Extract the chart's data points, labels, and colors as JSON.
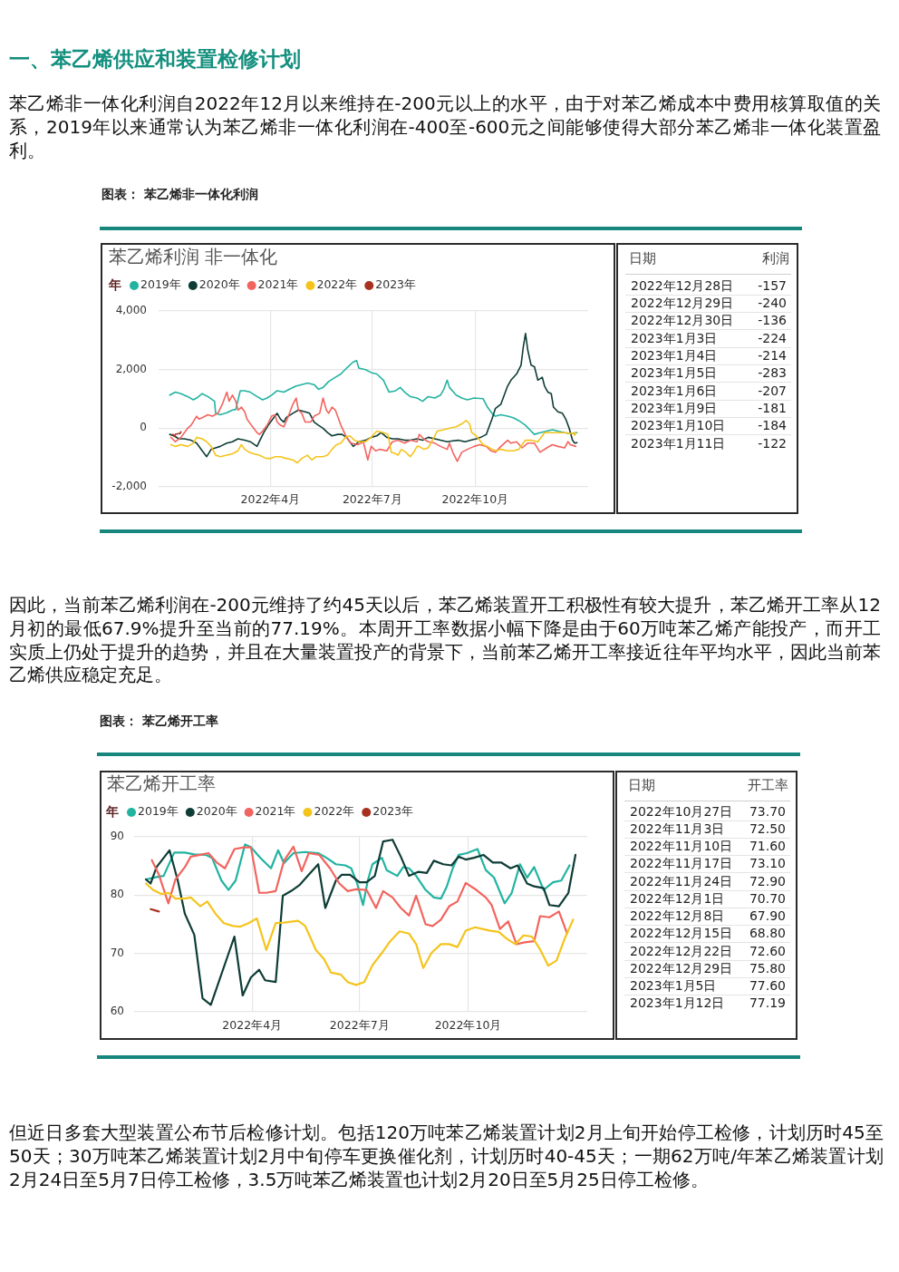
{
  "chart_data": [
    {
      "type": "line",
      "title": "苯乙烯利润 非一体化",
      "legend_title": "年",
      "legend": "top left",
      "grid": true,
      "marker": "none",
      "annotations": [
        "一、苯乙烯供应和装置检修计划",
        "苯乙烯非一体化利润自2022年12月以来维持在-200元以上的水平，由于对苯乙烯成本中费用核算取值的关系，2019年以来通常认为苯乙烯非一体化利润在-400至-600元之间能够使得大部分苯乙烯非一体化装置盈利。",
        "图表： 苯乙烯非一体化利润"
      ],
      "xlim": [
        "2021-12-22",
        "2023-01-10"
      ],
      "xticks": [
        {
          "value": "2022-04",
          "label": "2022年4月"
        },
        {
          "value": "2022-07",
          "label": "2022年7月"
        },
        {
          "value": "2022-10",
          "label": "2022年10月"
        }
      ],
      "ylim": [
        -2000,
        4000
      ],
      "yticks": [
        {
          "value": -2000,
          "label": "-2,000"
        },
        0,
        {
          "value": 2000,
          "label": "2,000"
        },
        {
          "value": 4000,
          "label": "4,000"
        }
      ],
      "series": [
        {
          "name": "2019年",
          "color": "#22b3a1",
          "x": [
            "2022-01-01",
            "2022-01-06",
            "2022-01-11",
            "2022-01-17",
            "2022-01-22",
            "2022-01-25",
            "2022-01-30",
            "2022-02-04",
            "2022-02-10",
            "2022-02-11",
            "2022-02-15",
            "2022-02-21",
            "2022-02-26",
            "2022-03-01",
            "2022-03-05",
            "2022-03-09",
            "2022-03-14",
            "2022-03-20",
            "2022-03-25",
            "2022-03-29",
            "2022-04-02",
            "2022-04-07",
            "2022-04-13",
            "2022-04-18",
            "2022-04-24",
            "2022-04-29",
            "2022-05-04",
            "2022-05-10",
            "2022-05-14",
            "2022-05-18",
            "2022-05-23",
            "2022-05-29",
            "2022-06-03",
            "2022-06-08",
            "2022-06-14",
            "2022-06-17",
            "2022-06-19",
            "2022-06-25",
            "2022-06-30",
            "2022-07-05",
            "2022-07-11",
            "2022-07-16",
            "2022-07-22",
            "2022-07-26",
            "2022-07-30",
            "2022-08-04",
            "2022-08-10",
            "2022-08-15",
            "2022-08-20",
            "2022-08-26",
            "2022-08-31",
            "2022-09-03",
            "2022-09-06",
            "2022-09-08",
            "2022-09-14",
            "2022-09-19",
            "2022-09-24",
            "2022-09-30",
            "2022-10-08",
            "2022-10-12",
            "2022-10-16",
            "2022-10-19",
            "2022-10-24",
            "2022-10-30",
            "2022-11-04",
            "2022-11-09",
            "2022-11-15",
            "2022-11-20",
            "2022-11-23",
            "2022-11-28",
            "2022-12-04",
            "2022-12-09",
            "2022-12-14",
            "2022-12-20",
            "2022-12-25",
            "2022-12-31"
          ],
          "values": [
            1130,
            1230,
            1180,
            1080,
            970,
            1030,
            1180,
            1080,
            920,
            510,
            460,
            530,
            620,
            640,
            1280,
            1280,
            1230,
            1080,
            970,
            1030,
            1130,
            1280,
            1230,
            1330,
            1440,
            1490,
            1540,
            1490,
            1330,
            1390,
            1590,
            1740,
            1850,
            2050,
            2260,
            2310,
            2050,
            2000,
            1900,
            1850,
            1640,
            1230,
            1280,
            1390,
            1230,
            1080,
            1030,
            920,
            1080,
            1030,
            1130,
            1330,
            1640,
            1390,
            1130,
            1030,
            970,
            1030,
            1010,
            720,
            510,
            410,
            460,
            410,
            360,
            260,
            100,
            -100,
            -210,
            -150,
            -100,
            -50,
            -100,
            -150,
            -180,
            -150
          ]
        },
        {
          "name": "2020年",
          "color": "#0e3d36",
          "x": [
            "2022-01-01",
            "2022-01-05",
            "2022-01-09",
            "2022-01-14",
            "2022-01-20",
            "2022-01-25",
            "2022-01-30",
            "2022-02-03",
            "2022-02-07",
            "2022-02-11",
            "2022-02-15",
            "2022-02-21",
            "2022-02-26",
            "2022-03-03",
            "2022-03-09",
            "2022-03-14",
            "2022-03-20",
            "2022-03-22",
            "2022-03-26",
            "2022-03-30",
            "2022-04-03",
            "2022-04-07",
            "2022-04-10",
            "2022-04-13",
            "2022-04-15",
            "2022-04-21",
            "2022-04-26",
            "2022-05-02",
            "2022-05-06",
            "2022-05-10",
            "2022-05-14",
            "2022-05-18",
            "2022-05-22",
            "2022-05-26",
            "2022-05-31",
            "2022-06-04",
            "2022-06-08",
            "2022-06-14",
            "2022-06-19",
            "2022-06-25",
            "2022-06-30",
            "2022-07-05",
            "2022-07-09",
            "2022-07-14",
            "2022-07-19",
            "2022-07-24",
            "2022-07-30",
            "2022-08-04",
            "2022-08-10",
            "2022-08-15",
            "2022-08-20",
            "2022-08-26",
            "2022-08-31",
            "2022-09-06",
            "2022-09-11",
            "2022-09-16",
            "2022-09-22",
            "2022-09-27",
            "2022-10-02",
            "2022-10-06",
            "2022-10-11",
            "2022-10-13",
            "2022-10-16",
            "2022-10-19",
            "2022-10-24",
            "2022-10-27",
            "2022-10-30",
            "2022-11-02",
            "2022-11-07",
            "2022-11-11",
            "2022-11-13",
            "2022-11-15",
            "2022-11-17",
            "2022-11-20",
            "2022-11-23",
            "2022-11-26",
            "2022-11-30",
            "2022-12-02",
            "2022-12-05",
            "2022-12-08",
            "2022-12-10",
            "2022-12-14",
            "2022-12-18",
            "2022-12-21",
            "2022-12-24",
            "2022-12-27",
            "2022-12-29",
            "2022-12-31"
          ],
          "values": [
            -210,
            -260,
            -360,
            -360,
            -410,
            -510,
            -770,
            -970,
            -720,
            -670,
            -620,
            -510,
            -460,
            -360,
            -410,
            -460,
            -620,
            -460,
            -150,
            100,
            310,
            510,
            310,
            210,
            360,
            510,
            620,
            560,
            510,
            210,
            100,
            0,
            -150,
            -260,
            -210,
            -210,
            -310,
            -620,
            -460,
            -410,
            -310,
            -260,
            -150,
            -310,
            -360,
            -360,
            -410,
            -410,
            -360,
            -410,
            -310,
            -360,
            -410,
            -460,
            -430,
            -410,
            -460,
            -410,
            -360,
            -310,
            -210,
            0,
            310,
            670,
            820,
            1130,
            1440,
            1640,
            1850,
            2150,
            2770,
            3230,
            2670,
            2150,
            2100,
            1640,
            1740,
            1440,
            1230,
            1180,
            720,
            560,
            510,
            310,
            0,
            -410,
            -510,
            -490
          ]
        },
        {
          "name": "2021年",
          "color": "#f2645f",
          "x": [
            "2022-01-02",
            "2022-01-06",
            "2022-01-11",
            "2022-01-17",
            "2022-01-20",
            "2022-01-25",
            "2022-01-27",
            "2022-01-30",
            "2022-02-04",
            "2022-02-08",
            "2022-02-13",
            "2022-02-17",
            "2022-02-21",
            "2022-02-23",
            "2022-02-26",
            "2022-03-01",
            "2022-03-03",
            "2022-03-06",
            "2022-03-09",
            "2022-03-11",
            "2022-03-15",
            "2022-03-20",
            "2022-03-22",
            "2022-03-25",
            "2022-03-29",
            "2022-04-02",
            "2022-04-05",
            "2022-04-07",
            "2022-04-10",
            "2022-04-13",
            "2022-04-17",
            "2022-04-21",
            "2022-04-24",
            "2022-04-26",
            "2022-04-29",
            "2022-05-02",
            "2022-05-07",
            "2022-05-10",
            "2022-05-15",
            "2022-05-18",
            "2022-05-21",
            "2022-05-23",
            "2022-05-26",
            "2022-05-29",
            "2022-05-31",
            "2022-06-03",
            "2022-06-06",
            "2022-06-08",
            "2022-06-12",
            "2022-06-18",
            "2022-06-23",
            "2022-06-27",
            "2022-06-30",
            "2022-07-04",
            "2022-07-08",
            "2022-07-14",
            "2022-07-19",
            "2022-07-24",
            "2022-07-30",
            "2022-08-04",
            "2022-08-10",
            "2022-08-12",
            "2022-08-16",
            "2022-08-20",
            "2022-08-26",
            "2022-08-31",
            "2022-09-06",
            "2022-09-08",
            "2022-09-11",
            "2022-09-15",
            "2022-09-19",
            "2022-09-24",
            "2022-09-30",
            "2022-10-05",
            "2022-10-11",
            "2022-10-15",
            "2022-10-19",
            "2022-10-24",
            "2022-10-30",
            "2022-11-02",
            "2022-11-07",
            "2022-11-12",
            "2022-11-17",
            "2022-11-23",
            "2022-11-28",
            "2022-12-04",
            "2022-12-09",
            "2022-12-14",
            "2022-12-20",
            "2022-12-23",
            "2022-12-25",
            "2022-12-30"
          ],
          "values": [
            -310,
            -460,
            -310,
            0,
            100,
            410,
            310,
            360,
            460,
            410,
            510,
            820,
            1230,
            920,
            1130,
            920,
            620,
            720,
            560,
            310,
            100,
            -150,
            -210,
            -100,
            100,
            410,
            460,
            210,
            100,
            50,
            410,
            820,
            1030,
            620,
            510,
            210,
            210,
            410,
            510,
            1030,
            620,
            510,
            720,
            620,
            410,
            100,
            -150,
            -310,
            -510,
            -560,
            -460,
            -1080,
            -620,
            -770,
            -720,
            -770,
            -460,
            -410,
            -510,
            -410,
            -460,
            -210,
            -360,
            -460,
            -510,
            -620,
            -720,
            -510,
            -820,
            -1130,
            -820,
            -720,
            -620,
            -560,
            -620,
            -770,
            -820,
            -620,
            -410,
            -510,
            -460,
            -670,
            -510,
            -510,
            -820,
            -670,
            -560,
            -620,
            -670,
            -460,
            -560,
            -620
          ]
        },
        {
          "name": "2022年",
          "color": "#f4c41d",
          "x": [
            "2022-01-02",
            "2022-01-06",
            "2022-01-11",
            "2022-01-17",
            "2022-01-22",
            "2022-01-25",
            "2022-01-30",
            "2022-02-03",
            "2022-02-07",
            "2022-02-11",
            "2022-02-15",
            "2022-02-21",
            "2022-02-26",
            "2022-03-03",
            "2022-03-06",
            "2022-03-09",
            "2022-03-13",
            "2022-03-17",
            "2022-03-22",
            "2022-03-28",
            "2022-04-01",
            "2022-04-05",
            "2022-04-10",
            "2022-04-15",
            "2022-04-21",
            "2022-04-25",
            "2022-04-29",
            "2022-05-04",
            "2022-05-08",
            "2022-05-12",
            "2022-05-18",
            "2022-05-22",
            "2022-05-26",
            "2022-05-30",
            "2022-06-03",
            "2022-06-07",
            "2022-06-11",
            "2022-06-15",
            "2022-06-19",
            "2022-06-25",
            "2022-06-30",
            "2022-07-05",
            "2022-07-11",
            "2022-07-15",
            "2022-07-18",
            "2022-07-22",
            "2022-07-24",
            "2022-07-27",
            "2022-07-31",
            "2022-08-04",
            "2022-08-07",
            "2022-08-10",
            "2022-08-12",
            "2022-08-16",
            "2022-08-20",
            "2022-08-23",
            "2022-08-26",
            "2022-08-28",
            "2022-09-03",
            "2022-09-08",
            "2022-09-14",
            "2022-09-19",
            "2022-09-23",
            "2022-09-26",
            "2022-09-28",
            "2022-10-02",
            "2022-10-05",
            "2022-10-08",
            "2022-10-12",
            "2022-10-16",
            "2022-10-20",
            "2022-10-24",
            "2022-10-30",
            "2022-11-04",
            "2022-11-09",
            "2022-11-12",
            "2022-11-15",
            "2022-11-20",
            "2022-11-26",
            "2022-11-30",
            "2022-12-02",
            "2022-12-09",
            "2022-12-14",
            "2022-12-20",
            "2022-12-25",
            "2022-12-28",
            "2022-12-29",
            "2022-12-30"
          ],
          "values": [
            -560,
            -620,
            -560,
            -620,
            -510,
            -310,
            -360,
            -460,
            -620,
            -920,
            -970,
            -920,
            -870,
            -770,
            -560,
            -720,
            -820,
            -870,
            -920,
            -1030,
            -1030,
            -970,
            -970,
            -1030,
            -1080,
            -1180,
            -1030,
            -920,
            -1080,
            -970,
            -970,
            -920,
            -720,
            -560,
            -510,
            -310,
            -260,
            -410,
            -460,
            -460,
            -310,
            -100,
            -150,
            -210,
            -820,
            -870,
            -920,
            -720,
            -820,
            -970,
            -820,
            -620,
            -620,
            -720,
            -670,
            -460,
            -260,
            -100,
            -50,
            0,
            50,
            150,
            260,
            150,
            -150,
            -260,
            -410,
            -560,
            -620,
            -720,
            -770,
            -720,
            -770,
            -770,
            -720,
            -560,
            -410,
            -410,
            -460,
            -260,
            -150,
            -150,
            -150,
            -150,
            -180,
            -157,
            -240,
            -136
          ]
        },
        {
          "name": "2023年",
          "color": "#a8301f",
          "x": [
            "2022-01-03",
            "2022-01-04",
            "2022-01-05",
            "2022-01-06",
            "2022-01-09",
            "2022-01-10",
            "2022-01-11"
          ],
          "values": [
            -224,
            -214,
            -283,
            -207,
            -181,
            -184,
            -122
          ]
        }
      ]
    },
    {
      "type": "other",
      "xlabel": "日期",
      "ylabel": "利润",
      "data_labels": true,
      "categories": [
        "2022年12月28日",
        "2022年12月29日",
        "2022年12月30日",
        "2023年1月3日",
        "2023年1月4日",
        "2023年1月5日",
        "2023年1月6日",
        "2023年1月9日",
        "2023年1月10日",
        "2023年1月11日"
      ],
      "values": [
        -157,
        -240,
        -136,
        -224,
        -214,
        -283,
        -207,
        -181,
        -184,
        -122
      ]
    },
    {
      "type": "line",
      "title": "苯乙烯开工率",
      "legend_title": "年",
      "legend": "top left",
      "grid": true,
      "marker": "none",
      "annotations": [
        "因此，当前苯乙烯利润在-200元维持了约45天以后，苯乙烯装置开工积极性有较大提升，苯乙烯开工率从12月初的最低67.9%提升至当前的77.19%。本周开工率数据小幅下降是由于60万吨苯乙烯产能投产，而开工实质上仍处于提升的趋势，并且在大量装置投产的背景下，当前苯乙烯开工率接近往年平均水平，因此当前苯乙烯供应稳定充足。",
        "图表： 苯乙烯开工率",
        "但近日多套大型装置公布节后检修计划。包括120万吨苯乙烯装置计划2月上旬开始停工检修，计划历时45至50天；30万吨苯乙烯装置计划2月中旬停车更换催化剂，计划历时40-45天；一期62万吨/年苯乙烯装置计划2月24日至5月7日停工检修，3.5万吨苯乙烯装置也计划2月20日至5月25日停工检修。"
      ],
      "xlim": [
        "2021-12-22",
        "2023-01-10"
      ],
      "xticks": [
        {
          "value": "2022-04",
          "label": "2022年4月"
        },
        {
          "value": "2022-07",
          "label": "2022年7月"
        },
        {
          "value": "2022-10",
          "label": "2022年10月"
        }
      ],
      "ylim": [
        60,
        90
      ],
      "yticks": [
        60,
        70,
        80,
        90
      ],
      "series": [
        {
          "name": "2019年",
          "color": "#22b3a1",
          "x": [
            "2022-01-01",
            "2022-01-10",
            "2022-01-16",
            "2022-01-25",
            "2022-02-03",
            "2022-02-11",
            "2022-02-21",
            "2022-02-26",
            "2022-03-06",
            "2022-03-12",
            "2022-03-18",
            "2022-03-26",
            "2022-03-31",
            "2022-04-08",
            "2022-04-17",
            "2022-04-23",
            "2022-04-28",
            "2022-05-06",
            "2022-05-16",
            "2022-05-27",
            "2022-06-03",
            "2022-06-11",
            "2022-06-19",
            "2022-06-24",
            "2022-06-29",
            "2022-07-04",
            "2022-07-08",
            "2022-07-12",
            "2022-07-20",
            "2022-07-24",
            "2022-08-02",
            "2022-08-07",
            "2022-08-12",
            "2022-08-18",
            "2022-08-26",
            "2022-09-02",
            "2022-09-08",
            "2022-09-13",
            "2022-09-18",
            "2022-09-23",
            "2022-09-30",
            "2022-10-09",
            "2022-10-16",
            "2022-10-23",
            "2022-11-01",
            "2022-11-07",
            "2022-11-14",
            "2022-11-20",
            "2022-11-26",
            "2022-12-04",
            "2022-12-12",
            "2022-12-19",
            "2022-12-26"
          ],
          "values": [
            82.7,
            83.1,
            83.3,
            87.3,
            87.3,
            87.0,
            86.9,
            86.4,
            82.5,
            80.9,
            82.5,
            88.7,
            88.2,
            86.4,
            84.6,
            87.7,
            85.5,
            87.2,
            87.4,
            87.2,
            86.4,
            85.3,
            85.1,
            84.6,
            82.0,
            78.3,
            82.5,
            85.3,
            86.4,
            84.3,
            83.3,
            84.8,
            84.6,
            83.3,
            80.9,
            79.6,
            79.4,
            81.5,
            84.6,
            86.9,
            87.2,
            87.9,
            84.3,
            83.0,
            78.6,
            80.4,
            85.3,
            83.0,
            84.8,
            80.9,
            82.2,
            82.5,
            85.1
          ]
        },
        {
          "name": "2020年",
          "color": "#0e3d36",
          "x": [
            "2022-01-01",
            "2022-01-05",
            "2022-01-10",
            "2022-01-21",
            "2022-01-28",
            "2022-02-03",
            "2022-02-11",
            "2022-02-18",
            "2022-02-25",
            "2022-03-17",
            "2022-03-24",
            "2022-03-31",
            "2022-04-07",
            "2022-04-12",
            "2022-04-21",
            "2022-04-27",
            "2022-05-04",
            "2022-05-11",
            "2022-05-19",
            "2022-05-27",
            "2022-06-02",
            "2022-06-11",
            "2022-06-16",
            "2022-06-23",
            "2022-07-01",
            "2022-07-07",
            "2022-07-14",
            "2022-07-21",
            "2022-07-29",
            "2022-08-05",
            "2022-08-12",
            "2022-08-20",
            "2022-08-27",
            "2022-09-02",
            "2022-09-10",
            "2022-09-17",
            "2022-09-23",
            "2022-09-29",
            "2022-10-06",
            "2022-10-14",
            "2022-10-22",
            "2022-10-29",
            "2022-11-06",
            "2022-11-12",
            "2022-11-20",
            "2022-11-26",
            "2022-12-04",
            "2022-12-09",
            "2022-12-17",
            "2022-12-25",
            "2022-12-31"
          ],
          "values": [
            82.7,
            82.0,
            84.8,
            87.7,
            82.5,
            76.8,
            73.2,
            62.3,
            61.2,
            72.9,
            62.8,
            65.9,
            67.2,
            65.4,
            65.1,
            79.9,
            80.7,
            81.7,
            83.5,
            85.3,
            77.8,
            82.5,
            83.5,
            83.5,
            82.2,
            82.2,
            83.3,
            89.2,
            89.5,
            86.6,
            83.3,
            84.0,
            83.8,
            85.9,
            85.3,
            85.1,
            86.6,
            86.1,
            86.4,
            86.9,
            85.6,
            85.6,
            84.6,
            85.1,
            82.0,
            81.5,
            81.2,
            78.3,
            78.1,
            80.4,
            86.9
          ]
        },
        {
          "name": "2021年",
          "color": "#f2645f",
          "x": [
            "2022-01-06",
            "2022-01-12",
            "2022-01-20",
            "2022-01-26",
            "2022-02-03",
            "2022-02-08",
            "2022-02-16",
            "2022-02-23",
            "2022-03-02",
            "2022-03-09",
            "2022-03-17",
            "2022-03-25",
            "2022-03-31",
            "2022-04-07",
            "2022-04-13",
            "2022-04-21",
            "2022-04-28",
            "2022-05-06",
            "2022-05-13",
            "2022-05-19",
            "2022-05-28",
            "2022-06-06",
            "2022-06-14",
            "2022-06-21",
            "2022-06-28",
            "2022-07-07",
            "2022-07-15",
            "2022-07-21",
            "2022-07-29",
            "2022-08-05",
            "2022-08-12",
            "2022-08-18",
            "2022-08-26",
            "2022-09-01",
            "2022-09-08",
            "2022-09-15",
            "2022-09-22",
            "2022-09-29",
            "2022-10-08",
            "2022-10-16",
            "2022-10-21",
            "2022-10-28",
            "2022-11-04",
            "2022-11-11",
            "2022-11-18",
            "2022-11-26",
            "2022-12-01",
            "2022-12-09",
            "2022-12-17",
            "2022-12-24"
          ],
          "values": [
            86.0,
            83.5,
            78.6,
            82.7,
            84.8,
            86.6,
            86.9,
            87.2,
            85.6,
            84.6,
            87.9,
            88.2,
            88.2,
            80.4,
            80.4,
            80.7,
            85.9,
            88.3,
            84.1,
            87.2,
            86.9,
            84.6,
            82.0,
            80.7,
            81.0,
            80.9,
            77.8,
            80.7,
            79.6,
            77.8,
            76.5,
            79.9,
            75.0,
            74.7,
            75.8,
            78.1,
            78.9,
            82.1,
            80.9,
            79.6,
            78.3,
            74.2,
            75.5,
            71.6,
            71.9,
            72.1,
            76.4,
            76.2,
            77.2,
            73.4
          ]
        },
        {
          "name": "2022年",
          "color": "#f4c41d",
          "x": [
            "2022-01-01",
            "2022-01-07",
            "2022-01-14",
            "2022-01-20",
            "2022-01-26",
            "2022-02-03",
            "2022-02-08",
            "2022-02-16",
            "2022-02-22",
            "2022-03-01",
            "2022-03-08",
            "2022-03-16",
            "2022-03-22",
            "2022-03-29",
            "2022-04-05",
            "2022-04-13",
            "2022-04-21",
            "2022-04-28",
            "2022-05-10",
            "2022-05-16",
            "2022-05-25",
            "2022-06-01",
            "2022-06-07",
            "2022-06-15",
            "2022-06-21",
            "2022-06-28",
            "2022-07-05",
            "2022-07-12",
            "2022-07-20",
            "2022-07-27",
            "2022-08-04",
            "2022-08-12",
            "2022-08-18",
            "2022-08-24",
            "2022-08-31",
            "2022-09-08",
            "2022-09-15",
            "2022-09-22",
            "2022-09-29",
            "2022-10-07",
            "2022-10-13",
            "2022-10-20",
            "2022-10-27",
            "2022-11-03",
            "2022-11-10",
            "2022-11-17",
            "2022-11-24",
            "2022-12-01",
            "2022-12-08",
            "2022-12-15",
            "2022-12-22",
            "2022-12-29"
          ],
          "values": [
            82.0,
            80.9,
            80.2,
            80.4,
            79.4,
            79.4,
            79.6,
            78.1,
            78.9,
            76.8,
            75.2,
            74.7,
            74.6,
            75.2,
            76.0,
            70.6,
            75.2,
            75.3,
            75.6,
            74.7,
            70.6,
            69.0,
            66.7,
            66.4,
            65.1,
            64.6,
            65.1,
            68.0,
            70.1,
            72.1,
            73.8,
            73.4,
            71.6,
            67.5,
            70.1,
            71.6,
            71.6,
            71.1,
            73.9,
            74.5,
            74.2,
            73.9,
            73.7,
            72.5,
            71.6,
            73.1,
            72.9,
            70.7,
            67.9,
            68.8,
            72.6,
            75.8
          ]
        },
        {
          "name": "2023年",
          "color": "#a8301f",
          "x": [
            "2022-01-05",
            "2022-01-12"
          ],
          "values": [
            77.6,
            77.19
          ]
        }
      ]
    },
    {
      "type": "other",
      "xlabel": "日期",
      "ylabel": "开工率",
      "categories": [
        "2022年10月27日",
        "2022年11月3日",
        "2022年11月10日",
        "2022年11月17日",
        "2022年11月24日",
        "2022年12月1日",
        "2022年12月8日",
        "2022年12月15日",
        "2022年12月22日",
        "2022年12月29日",
        "2023年1月5日",
        "2023年1月12日"
      ],
      "value_labels": [
        "73.70",
        "72.50",
        "71.60",
        "73.10",
        "72.90",
        "70.70",
        "67.90",
        "68.80",
        "72.60",
        "75.80",
        "77.60",
        "77.19"
      ]
    }
  ]
}
